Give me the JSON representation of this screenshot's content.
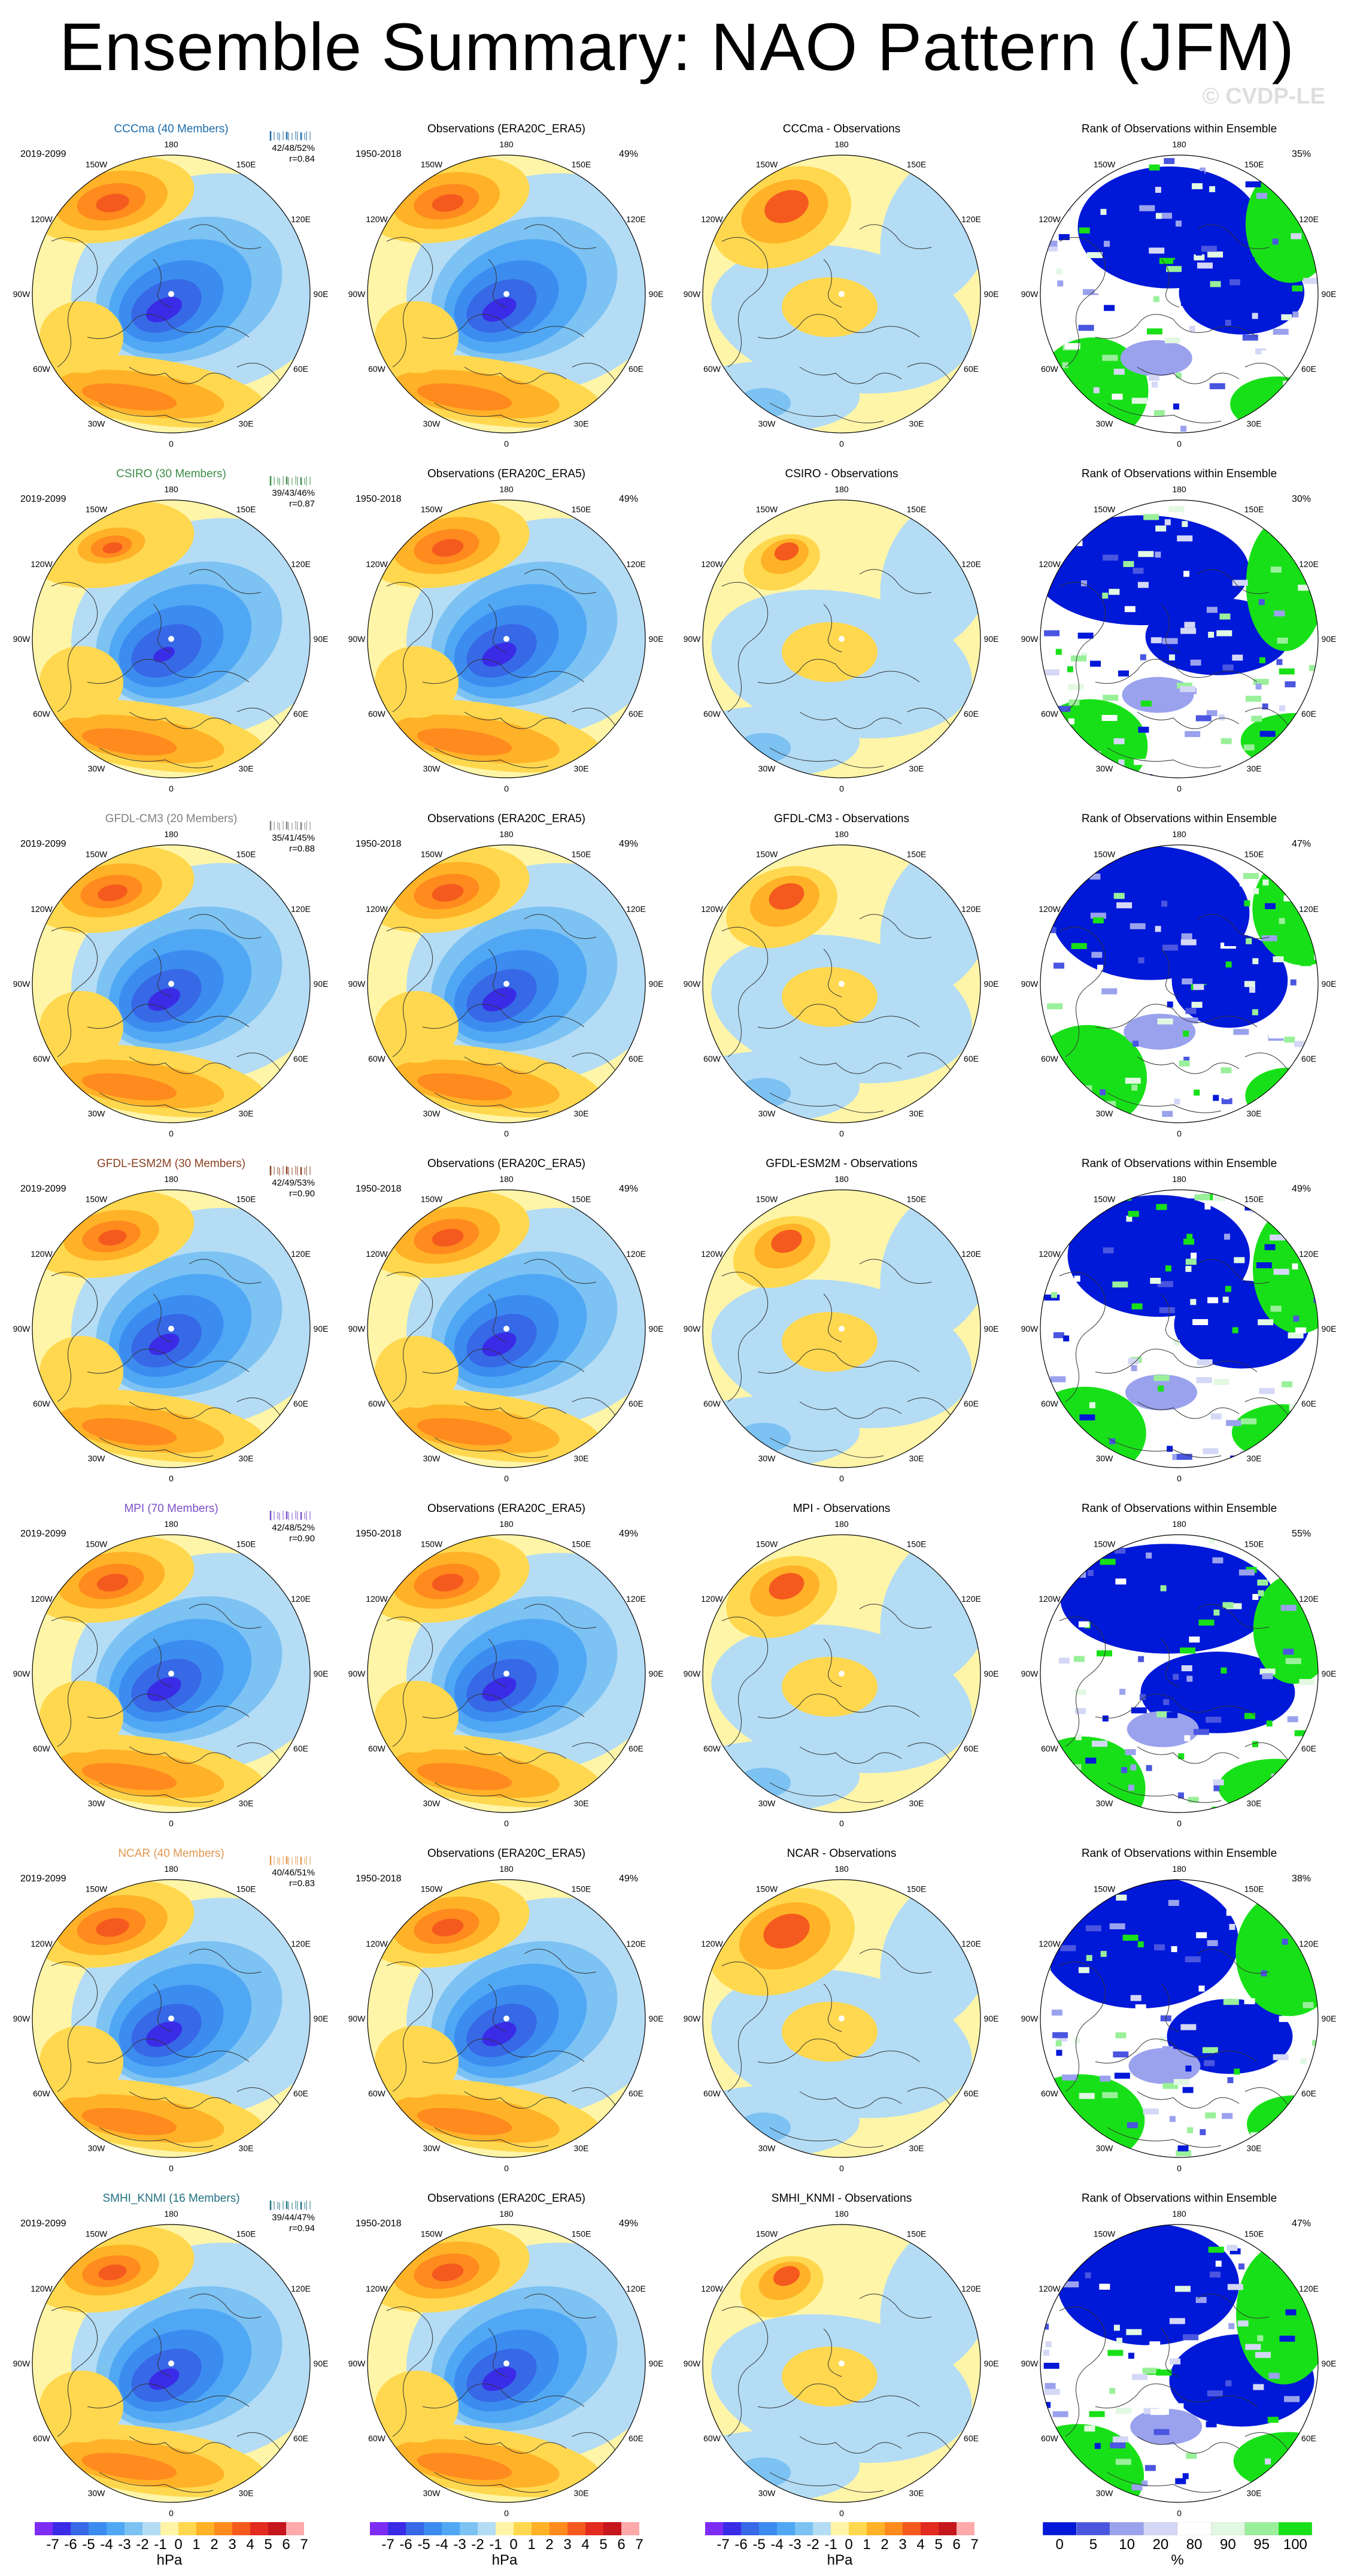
{
  "header": {
    "title": "Ensemble Summary: NAO Pattern (JFM)",
    "watermark": "© CVDP-LE"
  },
  "lon_labels": [
    "180",
    "150E",
    "120E",
    "90E",
    "60E",
    "30E",
    "0",
    "30W",
    "60W",
    "90W",
    "120W",
    "150W"
  ],
  "colors": {
    "blue_ramp": [
      "#7d2cf4",
      "#3a2be6",
      "#3768e6",
      "#3c8cf0",
      "#50a8f5",
      "#7cc2f3",
      "#b4dcf5"
    ],
    "red_ramp": [
      "#fff5a8",
      "#ffd84f",
      "#ffb227",
      "#ff8a1e",
      "#f45a1e",
      "#e22a1e",
      "#c4161c",
      "#ffaaaa"
    ],
    "rank_colors": [
      "#0018d8",
      "#4a56e0",
      "#9aa2ee",
      "#d4d8f6",
      "#ffffff",
      "#e2f8e2",
      "#9af09a",
      "#18e018"
    ],
    "ocean": "#add8f0",
    "land_line": "#333333",
    "model_colors": {
      "CCCma": "#1a6aa8",
      "CSIRO": "#3c8c4a",
      "GFDL-CM3": "#808080",
      "GFDL-ESM2M": "#8a4020",
      "MPI": "#7a50c8",
      "NCAR": "#e09850",
      "SMHI_KNMI": "#207080"
    }
  },
  "rows": [
    {
      "model_title": "CCCma (40 Members)",
      "model_color": "#1a6aa8",
      "model_period": "2019-2099",
      "stats_line1": "42/48/52%",
      "stats_line2": "r=0.84",
      "obs_title": "Observations (ERA20C_ERA5)",
      "obs_period": "1950-2018",
      "obs_pct": "49%",
      "diff_title": "CCCma - Observations",
      "rank_title": "Rank of Observations within Ensemble",
      "rank_pct": "35%"
    },
    {
      "model_title": "CSIRO (30 Members)",
      "model_color": "#3c8c4a",
      "model_period": "2019-2099",
      "stats_line1": "39/43/46%",
      "stats_line2": "r=0.87",
      "obs_title": "Observations (ERA20C_ERA5)",
      "obs_period": "1950-2018",
      "obs_pct": "49%",
      "diff_title": "CSIRO - Observations",
      "rank_title": "Rank of Observations within Ensemble",
      "rank_pct": "30%"
    },
    {
      "model_title": "GFDL-CM3 (20 Members)",
      "model_color": "#808080",
      "model_period": "2019-2099",
      "stats_line1": "35/41/45%",
      "stats_line2": "r=0.88",
      "obs_title": "Observations (ERA20C_ERA5)",
      "obs_period": "1950-2018",
      "obs_pct": "49%",
      "diff_title": "GFDL-CM3 - Observations",
      "rank_title": "Rank of Observations within Ensemble",
      "rank_pct": "47%"
    },
    {
      "model_title": "GFDL-ESM2M (30 Members)",
      "model_color": "#8a4020",
      "model_period": "2019-2099",
      "stats_line1": "42/49/53%",
      "stats_line2": "r=0.90",
      "obs_title": "Observations (ERA20C_ERA5)",
      "obs_period": "1950-2018",
      "obs_pct": "49%",
      "diff_title": "GFDL-ESM2M - Observations",
      "rank_title": "Rank of Observations within Ensemble",
      "rank_pct": "49%"
    },
    {
      "model_title": "MPI (70 Members)",
      "model_color": "#7a50c8",
      "model_period": "2019-2099",
      "stats_line1": "42/48/52%",
      "stats_line2": "r=0.90",
      "obs_title": "Observations (ERA20C_ERA5)",
      "obs_period": "1950-2018",
      "obs_pct": "49%",
      "diff_title": "MPI - Observations",
      "rank_title": "Rank of Observations within Ensemble",
      "rank_pct": "55%"
    },
    {
      "model_title": "NCAR (40 Members)",
      "model_color": "#e09850",
      "model_period": "2019-2099",
      "stats_line1": "40/46/51%",
      "stats_line2": "r=0.83",
      "obs_title": "Observations (ERA20C_ERA5)",
      "obs_period": "1950-2018",
      "obs_pct": "49%",
      "diff_title": "NCAR - Observations",
      "rank_title": "Rank of Observations within Ensemble",
      "rank_pct": "38%"
    },
    {
      "model_title": "SMHI_KNMI (16 Members)",
      "model_color": "#207080",
      "model_period": "2019-2099",
      "stats_line1": "39/44/47%",
      "stats_line2": "r=0.94",
      "obs_title": "Observations (ERA20C_ERA5)",
      "obs_period": "1950-2018",
      "obs_pct": "49%",
      "diff_title": "SMHI_KNMI - Observations",
      "rank_title": "Rank of Observations within Ensemble",
      "rank_pct": "47%"
    }
  ],
  "colorbars": {
    "hpa_labels": [
      "-7",
      "-6",
      "-5",
      "-4",
      "-3",
      "-2",
      "-1",
      "0",
      "1",
      "2",
      "3",
      "4",
      "5",
      "6",
      "7"
    ],
    "hpa_unit": "hPa",
    "rank_labels": [
      "0",
      "5",
      "10",
      "20",
      "80",
      "90",
      "95",
      "100"
    ],
    "rank_unit": "%"
  }
}
